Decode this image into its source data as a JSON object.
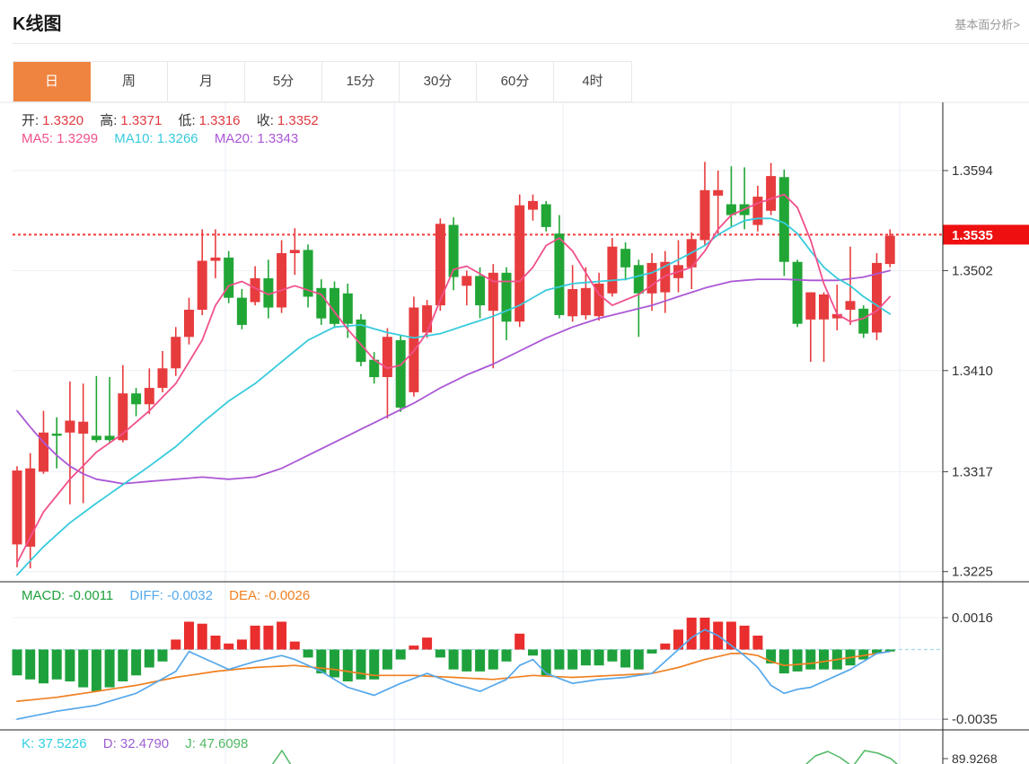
{
  "header": {
    "title": "K线图",
    "analysis_link": "基本面分析>"
  },
  "tabs": {
    "items": [
      "日",
      "周",
      "月",
      "5分",
      "15分",
      "30分",
      "60分",
      "4时"
    ],
    "active": "日"
  },
  "ohlc_legend": {
    "open_label": "开:",
    "open_value": "1.3320",
    "high_label": "高:",
    "high_value": "1.3371",
    "low_label": "低:",
    "low_value": "1.3316",
    "close_label": "收:",
    "close_value": "1.3352"
  },
  "ma_legend": {
    "ma5": "MA5: 1.3299",
    "ma10": "MA10: 1.3266",
    "ma20": "MA20: 1.3343"
  },
  "macd_legend": {
    "macd": "MACD: -0.0011",
    "diff": "DIFF: -0.0032",
    "dea": "DEA: -0.0026"
  },
  "kdj_legend": {
    "k": "K: 37.5226",
    "d": "D: 32.4790",
    "j": "J: 47.6098"
  },
  "colors": {
    "accent_orange": "#ef8440",
    "up_red": "#e73c3e",
    "down_green": "#21a636",
    "ma5_pink": "#f1508c",
    "ma10_cyan": "#38cbdc",
    "ma20_purple": "#ab58d5",
    "diff_blue": "#55a8eb",
    "dea_orange": "#f08021",
    "macd_bar_red": "#ea2d2d",
    "macd_bar_green": "#1ea13c",
    "k_cyan": "#2ecfe0",
    "d_purple": "#9d5fd3",
    "j_green": "#4fb863",
    "current_price_red": "#ee1010",
    "dotted_line_red": "#f53b3b",
    "grid": "#e9eef5",
    "axis_text": "#333333",
    "value_red": "#e0393e"
  },
  "chart_data": {
    "type": "candlestick",
    "title": "K线图",
    "interval_selected": "日",
    "legend_position": "top-left",
    "grid": true,
    "price_axis": {
      "ticks": [
        1.3594,
        1.3502,
        1.341,
        1.3317,
        1.3225
      ],
      "current_price": 1.3535,
      "current_price_label": "1.3535"
    },
    "candles_ohlc": [
      [
        1.325,
        1.3322,
        1.3229,
        1.3318
      ],
      [
        1.3248,
        1.3334,
        1.3228,
        1.332
      ],
      [
        1.3317,
        1.3373,
        1.3315,
        1.3353
      ],
      [
        1.3352,
        1.3367,
        1.332,
        1.335
      ],
      [
        1.3353,
        1.34,
        1.3287,
        1.3364
      ],
      [
        1.3352,
        1.3398,
        1.3288,
        1.3363
      ],
      [
        1.335,
        1.3405,
        1.3344,
        1.3346
      ],
      [
        1.335,
        1.3404,
        1.3344,
        1.3346
      ],
      [
        1.3346,
        1.3415,
        1.3344,
        1.3389
      ],
      [
        1.3389,
        1.3394,
        1.3368,
        1.3379
      ],
      [
        1.3379,
        1.3412,
        1.337,
        1.3394
      ],
      [
        1.3394,
        1.3428,
        1.339,
        1.3412
      ],
      [
        1.3412,
        1.345,
        1.3405,
        1.3441
      ],
      [
        1.3441,
        1.3477,
        1.3434,
        1.3466
      ],
      [
        1.3466,
        1.354,
        1.3461,
        1.3511
      ],
      [
        1.3511,
        1.354,
        1.3495,
        1.3514
      ],
      [
        1.3514,
        1.352,
        1.3472,
        1.3477
      ],
      [
        1.3477,
        1.3485,
        1.3448,
        1.3452
      ],
      [
        1.3473,
        1.3506,
        1.347,
        1.3495
      ],
      [
        1.3495,
        1.3512,
        1.3458,
        1.3468
      ],
      [
        1.3468,
        1.353,
        1.3463,
        1.3518
      ],
      [
        1.3518,
        1.3541,
        1.3498,
        1.3521
      ],
      [
        1.3521,
        1.3526,
        1.3468,
        1.3478
      ],
      [
        1.3486,
        1.3494,
        1.3452,
        1.3458
      ],
      [
        1.3486,
        1.3492,
        1.3449,
        1.3453
      ],
      [
        1.3481,
        1.349,
        1.344,
        1.3453
      ],
      [
        1.3457,
        1.3462,
        1.3414,
        1.3418
      ],
      [
        1.342,
        1.3427,
        1.3398,
        1.3404
      ],
      [
        1.3404,
        1.3449,
        1.3366,
        1.3441
      ],
      [
        1.3438,
        1.3443,
        1.3372,
        1.3376
      ],
      [
        1.339,
        1.3478,
        1.3386,
        1.3468
      ],
      [
        1.3445,
        1.3475,
        1.344,
        1.347
      ],
      [
        1.347,
        1.355,
        1.3465,
        1.3545
      ],
      [
        1.3544,
        1.3551,
        1.3484,
        1.3496
      ],
      [
        1.3488,
        1.3502,
        1.347,
        1.3497
      ],
      [
        1.3497,
        1.3505,
        1.3458,
        1.347
      ],
      [
        1.3465,
        1.3508,
        1.3412,
        1.35
      ],
      [
        1.35,
        1.3505,
        1.3438,
        1.3455
      ],
      [
        1.3455,
        1.3572,
        1.345,
        1.3562
      ],
      [
        1.3558,
        1.3572,
        1.3548,
        1.3566
      ],
      [
        1.3563,
        1.3566,
        1.3538,
        1.3542
      ],
      [
        1.3536,
        1.3553,
        1.3458,
        1.3461
      ],
      [
        1.346,
        1.3507,
        1.3455,
        1.3485
      ],
      [
        1.3461,
        1.3505,
        1.3457,
        1.3486
      ],
      [
        1.346,
        1.35,
        1.3456,
        1.349
      ],
      [
        1.3481,
        1.3532,
        1.3478,
        1.3524
      ],
      [
        1.3522,
        1.3528,
        1.3493,
        1.3505
      ],
      [
        1.3507,
        1.3512,
        1.3441,
        1.3481
      ],
      [
        1.3481,
        1.3518,
        1.3465,
        1.3509
      ],
      [
        1.3482,
        1.352,
        1.3463,
        1.351
      ],
      [
        1.3495,
        1.353,
        1.3482,
        1.3507
      ],
      [
        1.3505,
        1.3537,
        1.3485,
        1.3531
      ],
      [
        1.353,
        1.3602,
        1.3525,
        1.3576
      ],
      [
        1.3571,
        1.3594,
        1.3535,
        1.3576
      ],
      [
        1.3563,
        1.3598,
        1.3542,
        1.3553
      ],
      [
        1.3563,
        1.3597,
        1.354,
        1.3553
      ],
      [
        1.3544,
        1.358,
        1.3538,
        1.357
      ],
      [
        1.3557,
        1.3601,
        1.3553,
        1.3589
      ],
      [
        1.3588,
        1.3595,
        1.3497,
        1.351
      ],
      [
        1.351,
        1.3512,
        1.345,
        1.3453
      ],
      [
        1.3457,
        1.3482,
        1.3418,
        1.3482
      ],
      [
        1.3457,
        1.3482,
        1.3418,
        1.348
      ],
      [
        1.3458,
        1.3489,
        1.3447,
        1.3462
      ],
      [
        1.3466,
        1.3524,
        1.3452,
        1.3474
      ],
      [
        1.3467,
        1.347,
        1.344,
        1.3444
      ],
      [
        1.3445,
        1.3518,
        1.3438,
        1.3509
      ],
      [
        1.3508,
        1.354,
        1.3505,
        1.3534
      ]
    ],
    "ma5_points": [
      [
        0,
        1.3233
      ],
      [
        2,
        1.328
      ],
      [
        4,
        1.331
      ],
      [
        6,
        1.3335
      ],
      [
        8,
        1.3352
      ],
      [
        10,
        1.3373
      ],
      [
        12,
        1.3398
      ],
      [
        14,
        1.3438
      ],
      [
        15,
        1.347
      ],
      [
        16,
        1.3488
      ],
      [
        17,
        1.3492
      ],
      [
        19,
        1.348
      ],
      [
        21,
        1.3488
      ],
      [
        23,
        1.348
      ],
      [
        25,
        1.3448
      ],
      [
        27,
        1.342
      ],
      [
        28,
        1.3412
      ],
      [
        29,
        1.3415
      ],
      [
        30,
        1.3428
      ],
      [
        31,
        1.3445
      ],
      [
        32,
        1.3475
      ],
      [
        33,
        1.3503
      ],
      [
        34,
        1.3506
      ],
      [
        36,
        1.3492
      ],
      [
        38,
        1.3492
      ],
      [
        39,
        1.3505
      ],
      [
        40,
        1.3525
      ],
      [
        41,
        1.3532
      ],
      [
        42,
        1.352
      ],
      [
        43,
        1.35
      ],
      [
        44,
        1.348
      ],
      [
        45,
        1.347
      ],
      [
        47,
        1.348
      ],
      [
        49,
        1.3497
      ],
      [
        51,
        1.3505
      ],
      [
        52,
        1.352
      ],
      [
        53,
        1.354
      ],
      [
        54,
        1.3553
      ],
      [
        56,
        1.3564
      ],
      [
        58,
        1.3572
      ],
      [
        59,
        1.356
      ],
      [
        60,
        1.353
      ],
      [
        61,
        1.349
      ],
      [
        62,
        1.3462
      ],
      [
        63,
        1.3455
      ],
      [
        64,
        1.3458
      ],
      [
        65,
        1.3465
      ],
      [
        66,
        1.3478
      ]
    ],
    "ma10_points": [
      [
        0,
        1.3222
      ],
      [
        2,
        1.3248
      ],
      [
        4,
        1.327
      ],
      [
        6,
        1.3288
      ],
      [
        8,
        1.3305
      ],
      [
        10,
        1.3322
      ],
      [
        12,
        1.334
      ],
      [
        14,
        1.3362
      ],
      [
        16,
        1.3382
      ],
      [
        18,
        1.3398
      ],
      [
        20,
        1.3418
      ],
      [
        22,
        1.3438
      ],
      [
        24,
        1.345
      ],
      [
        26,
        1.3452
      ],
      [
        28,
        1.3445
      ],
      [
        30,
        1.344
      ],
      [
        32,
        1.3444
      ],
      [
        34,
        1.3452
      ],
      [
        36,
        1.346
      ],
      [
        38,
        1.347
      ],
      [
        40,
        1.3484
      ],
      [
        42,
        1.349
      ],
      [
        44,
        1.3492
      ],
      [
        46,
        1.3494
      ],
      [
        48,
        1.35
      ],
      [
        50,
        1.3512
      ],
      [
        52,
        1.3525
      ],
      [
        53,
        1.3535
      ],
      [
        54,
        1.3542
      ],
      [
        55,
        1.3548
      ],
      [
        56,
        1.355
      ],
      [
        57,
        1.355
      ],
      [
        58,
        1.3546
      ],
      [
        59,
        1.3536
      ],
      [
        60,
        1.352
      ],
      [
        61,
        1.3505
      ],
      [
        62,
        1.3495
      ],
      [
        63,
        1.3488
      ],
      [
        64,
        1.3478
      ],
      [
        65,
        1.347
      ],
      [
        66,
        1.3462
      ]
    ],
    "ma20_points": [
      [
        0,
        1.3373
      ],
      [
        1,
        1.3358
      ],
      [
        2,
        1.3344
      ],
      [
        3,
        1.3332
      ],
      [
        4,
        1.3322
      ],
      [
        5,
        1.3315
      ],
      [
        6,
        1.331
      ],
      [
        8,
        1.3306
      ],
      [
        10,
        1.3308
      ],
      [
        12,
        1.331
      ],
      [
        14,
        1.3312
      ],
      [
        16,
        1.331
      ],
      [
        18,
        1.3312
      ],
      [
        20,
        1.332
      ],
      [
        22,
        1.3332
      ],
      [
        24,
        1.3344
      ],
      [
        26,
        1.3356
      ],
      [
        28,
        1.3368
      ],
      [
        30,
        1.338
      ],
      [
        32,
        1.3394
      ],
      [
        34,
        1.3406
      ],
      [
        36,
        1.3416
      ],
      [
        38,
        1.3428
      ],
      [
        40,
        1.344
      ],
      [
        42,
        1.345
      ],
      [
        44,
        1.3458
      ],
      [
        46,
        1.3464
      ],
      [
        48,
        1.347
      ],
      [
        50,
        1.3478
      ],
      [
        52,
        1.3486
      ],
      [
        54,
        1.3492
      ],
      [
        56,
        1.3494
      ],
      [
        58,
        1.3494
      ],
      [
        60,
        1.3493
      ],
      [
        62,
        1.3493
      ],
      [
        64,
        1.3496
      ],
      [
        66,
        1.3502
      ]
    ],
    "macd": {
      "ticks": [
        0.0016,
        -0.0035
      ],
      "histogram": [
        -0.0013,
        -0.0015,
        -0.0017,
        -0.0015,
        -0.0016,
        -0.0019,
        -0.0021,
        -0.0019,
        -0.0016,
        -0.0013,
        -0.0009,
        -0.0006,
        0.0005,
        0.0014,
        0.0013,
        0.0007,
        0.0003,
        0.0005,
        0.0012,
        0.0012,
        0.0014,
        0.0004,
        -0.0004,
        -0.0012,
        -0.0014,
        -0.0016,
        -0.0015,
        -0.0015,
        -0.001,
        -0.0005,
        0.0002,
        0.0006,
        -0.0004,
        -0.001,
        -0.0011,
        -0.0011,
        -0.001,
        -0.0006,
        0.0008,
        -0.0003,
        -0.0013,
        -0.001,
        -0.001,
        -0.0008,
        -0.0008,
        -0.0006,
        -0.0009,
        -0.001,
        -0.0002,
        0.0003,
        0.001,
        0.0016,
        0.0016,
        0.0014,
        0.0014,
        0.0012,
        0.0007,
        -0.0007,
        -0.0012,
        -0.0011,
        -0.001,
        -0.001,
        -0.001,
        -0.0008,
        -0.0005,
        -0.0002,
        -0.0001
      ],
      "diff_points": [
        [
          0,
          -0.0035
        ],
        [
          3,
          -0.0031
        ],
        [
          6,
          -0.0028
        ],
        [
          9,
          -0.0022
        ],
        [
          12,
          -0.0011
        ],
        [
          13,
          -0.0001
        ],
        [
          14,
          -0.0004
        ],
        [
          16,
          -0.001
        ],
        [
          18,
          -0.0006
        ],
        [
          20,
          -0.0003
        ],
        [
          21,
          -0.0005
        ],
        [
          23,
          -0.0011
        ],
        [
          25,
          -0.0019
        ],
        [
          27,
          -0.0023
        ],
        [
          29,
          -0.0017
        ],
        [
          31,
          -0.0012
        ],
        [
          33,
          -0.0017
        ],
        [
          35,
          -0.0021
        ],
        [
          37,
          -0.0015
        ],
        [
          38,
          -0.0008
        ],
        [
          39,
          -0.0005
        ],
        [
          40,
          -0.0012
        ],
        [
          42,
          -0.0017
        ],
        [
          44,
          -0.0015
        ],
        [
          46,
          -0.0014
        ],
        [
          48,
          -0.0012
        ],
        [
          49,
          -0.0006
        ],
        [
          50,
          0.0
        ],
        [
          51,
          0.0006
        ],
        [
          52,
          0.001
        ],
        [
          53,
          0.0007
        ],
        [
          54,
          0.0002
        ],
        [
          55,
          -0.0003
        ],
        [
          56,
          -0.0009
        ],
        [
          57,
          -0.0018
        ],
        [
          58,
          -0.0022
        ],
        [
          59,
          -0.002
        ],
        [
          60,
          -0.0019
        ],
        [
          61,
          -0.0016
        ],
        [
          62,
          -0.0013
        ],
        [
          63,
          -0.001
        ],
        [
          64,
          -0.0006
        ],
        [
          65,
          -0.0002
        ],
        [
          66,
          -0.0001
        ]
      ],
      "dea_points": [
        [
          0,
          -0.0026
        ],
        [
          3,
          -0.0024
        ],
        [
          6,
          -0.0021
        ],
        [
          9,
          -0.0018
        ],
        [
          12,
          -0.0014
        ],
        [
          15,
          -0.0011
        ],
        [
          18,
          -0.0009
        ],
        [
          21,
          -0.0008
        ],
        [
          24,
          -0.001
        ],
        [
          27,
          -0.0013
        ],
        [
          30,
          -0.0013
        ],
        [
          33,
          -0.0014
        ],
        [
          36,
          -0.0015
        ],
        [
          39,
          -0.0013
        ],
        [
          42,
          -0.0014
        ],
        [
          45,
          -0.0013
        ],
        [
          48,
          -0.0012
        ],
        [
          50,
          -0.0009
        ],
        [
          52,
          -0.0005
        ],
        [
          54,
          -0.0002
        ],
        [
          55,
          -0.0002
        ],
        [
          56,
          -0.0003
        ],
        [
          57,
          -0.0006
        ],
        [
          58,
          -0.0008
        ],
        [
          60,
          -0.0007
        ],
        [
          62,
          -0.0005
        ],
        [
          64,
          -0.0003
        ],
        [
          66,
          -0.0001
        ]
      ]
    },
    "kdj": {
      "axis_label": "89.9268",
      "j_line_segments": [
        [
          [
            303,
            852
          ],
          [
            314,
            836
          ],
          [
            324,
            852
          ]
        ],
        [
          [
            897,
            852
          ],
          [
            908,
            842
          ],
          [
            922,
            837
          ],
          [
            936,
            844
          ],
          [
            947,
            852
          ]
        ],
        [
          [
            951,
            852
          ],
          [
            963,
            836
          ],
          [
            978,
            839
          ],
          [
            992,
            845
          ],
          [
            1000,
            852
          ]
        ]
      ]
    }
  }
}
